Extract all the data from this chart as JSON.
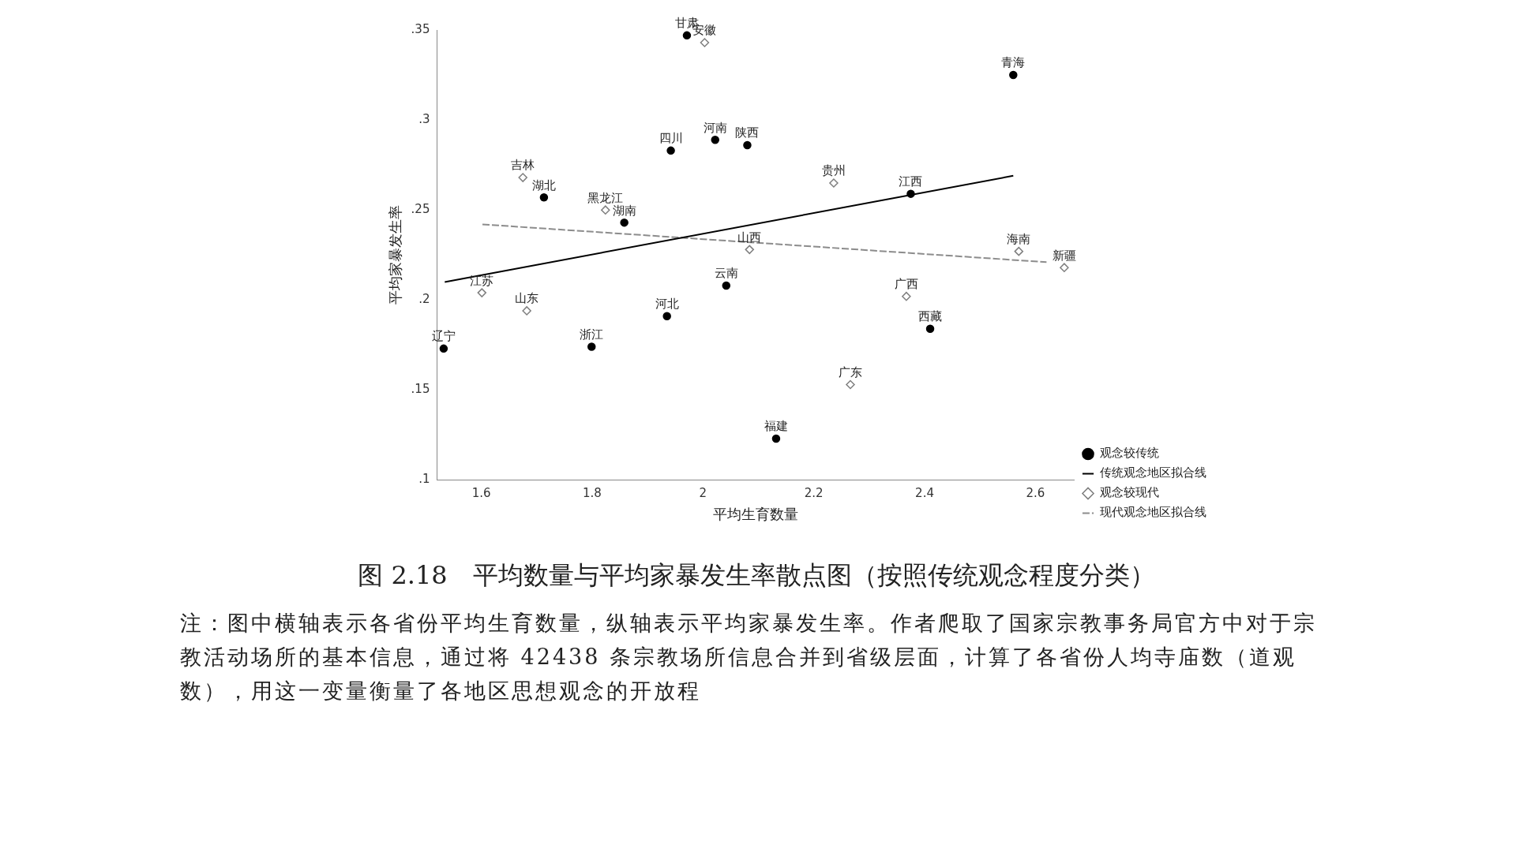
{
  "chart_data": {
    "type": "scatter",
    "title": "图 2.18　平均数量与平均家暴发生率散点图（按照传统观念程度分类）",
    "xlabel": "平均生育数量",
    "ylabel": "平均家暴发生率",
    "xlim": [
      1.52,
      2.67
    ],
    "xticks": [
      1.6,
      1.8,
      2,
      2.2,
      2.4,
      2.6
    ],
    "ylim": [
      0.1,
      0.35
    ],
    "yticks": [
      {
        "value": 0.1,
        "label": ".1"
      },
      {
        "value": 0.15,
        "label": ".15"
      },
      {
        "value": 0.2,
        "label": ".2"
      },
      {
        "value": 0.25,
        "label": ".25"
      },
      {
        "value": 0.3,
        "label": ".3"
      },
      {
        "value": 0.35,
        "label": ".35"
      }
    ],
    "grid": false,
    "legend": "right",
    "series": [
      {
        "name": "观念较传统",
        "marker": "circle",
        "color": "#000000",
        "x": [
          1.971,
          1.942,
          2.022,
          2.08,
          1.713,
          1.858,
          2.042,
          1.935,
          1.532,
          1.799,
          2.56,
          2.375,
          2.41,
          2.132
        ],
        "values": [
          0.347,
          0.283,
          0.289,
          0.286,
          0.257,
          0.243,
          0.208,
          0.191,
          0.173,
          0.174,
          0.325,
          0.259,
          0.184,
          0.123
        ]
      },
      {
        "name": "传统观念地区拟合线",
        "type": "line",
        "line_style": "solid",
        "color": "#000000",
        "x": [
          1.534,
          2.56
        ],
        "values": [
          0.21,
          0.269
        ]
      },
      {
        "name": "观念较现代",
        "marker": "diamond",
        "color": "#7f7f7f",
        "x": [
          2.003,
          1.675,
          1.824,
          2.084,
          1.601,
          1.682,
          2.236,
          2.57,
          2.652,
          2.367,
          2.266
        ],
        "values": [
          0.343,
          0.268,
          0.25,
          0.228,
          0.204,
          0.194,
          0.265,
          0.227,
          0.218,
          0.202,
          0.153
        ]
      },
      {
        "name": "现代观念地区拟合线",
        "type": "line",
        "line_style": "dashed",
        "color": "#8c8c8c",
        "x": [
          1.602,
          2.62
        ],
        "values": [
          0.242,
          0.221
        ]
      }
    ],
    "annotations": [
      {
        "text": "甘肃",
        "x": 1.971,
        "y": 0.347
      },
      {
        "text": "安徽",
        "x": 2.003,
        "y": 0.343
      },
      {
        "text": "四川",
        "x": 1.942,
        "y": 0.283
      },
      {
        "text": "河南",
        "x": 2.022,
        "y": 0.289
      },
      {
        "text": "陕西",
        "x": 2.08,
        "y": 0.286
      },
      {
        "text": "吉林",
        "x": 1.675,
        "y": 0.268
      },
      {
        "text": "湖北",
        "x": 1.713,
        "y": 0.257
      },
      {
        "text": "黑龙江",
        "x": 1.824,
        "y": 0.25
      },
      {
        "text": "湖南",
        "x": 1.858,
        "y": 0.243
      },
      {
        "text": "山西",
        "x": 2.084,
        "y": 0.228
      },
      {
        "text": "云南",
        "x": 2.042,
        "y": 0.208
      },
      {
        "text": "江苏",
        "x": 1.601,
        "y": 0.204
      },
      {
        "text": "山东",
        "x": 1.682,
        "y": 0.194
      },
      {
        "text": "河北",
        "x": 1.935,
        "y": 0.191
      },
      {
        "text": "辽宁",
        "x": 1.532,
        "y": 0.173
      },
      {
        "text": "浙江",
        "x": 1.799,
        "y": 0.174
      },
      {
        "text": "贵州",
        "x": 2.236,
        "y": 0.265
      },
      {
        "text": "青海",
        "x": 2.56,
        "y": 0.325
      },
      {
        "text": "江西",
        "x": 2.375,
        "y": 0.259
      },
      {
        "text": "海南",
        "x": 2.57,
        "y": 0.227
      },
      {
        "text": "新疆",
        "x": 2.652,
        "y": 0.218
      },
      {
        "text": "广西",
        "x": 2.367,
        "y": 0.202
      },
      {
        "text": "西藏",
        "x": 2.41,
        "y": 0.184
      },
      {
        "text": "广东",
        "x": 2.266,
        "y": 0.153
      },
      {
        "text": "福建",
        "x": 2.132,
        "y": 0.123
      },
      "注：图中横轴表示各省份平均生育数量，纵轴表示平均家暴发生率。作者爬取了国家宗教事务局官方中对于宗教活动场所的基本信息，通过将 42438 条宗教场所信息合并到省级层面，计算了各省份人均寺庙数（道观数），用这一变量衡量了各地区思想观念的开放程"
    ]
  }
}
